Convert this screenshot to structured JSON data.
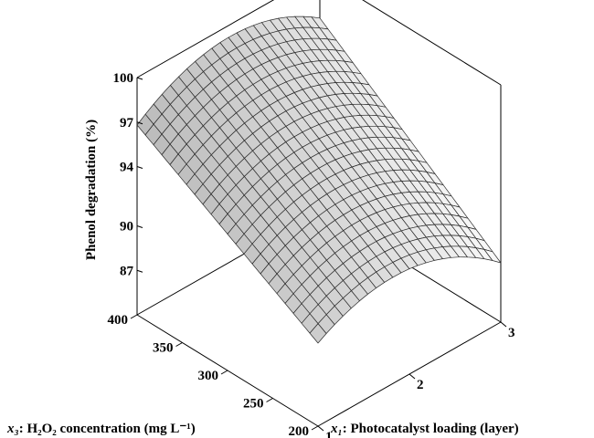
{
  "chart_data": {
    "type": "surface3d",
    "zlabel": "Phenol degradation (%)",
    "xlabel_var": "x₁",
    "xlabel_text": ": Photocatalyst loading (layer)",
    "ylabel_var": "x₃",
    "ylabel_text": ": H₂O₂ concentration (mg L⁻¹)",
    "x_ticks": [
      "1",
      "2",
      "3"
    ],
    "y_ticks": [
      "200",
      "250",
      "300",
      "350",
      "400"
    ],
    "z_ticks": [
      "87",
      "90",
      "94",
      "97",
      "100"
    ],
    "x_range": [
      1,
      3
    ],
    "y_range": [
      200,
      400
    ],
    "z_range": [
      84,
      100
    ],
    "surface_corners": {
      "x1_y400": 96.8,
      "x1_y200": 89.6,
      "x3_y400": 97.0,
      "x3_y200": 88.0
    },
    "grid": "wireframe",
    "x_tick_values": [
      1,
      2,
      3
    ],
    "y_tick_values": [
      200,
      250,
      300,
      350,
      400
    ],
    "z_tick_values": [
      87,
      90,
      94,
      97,
      100
    ]
  }
}
